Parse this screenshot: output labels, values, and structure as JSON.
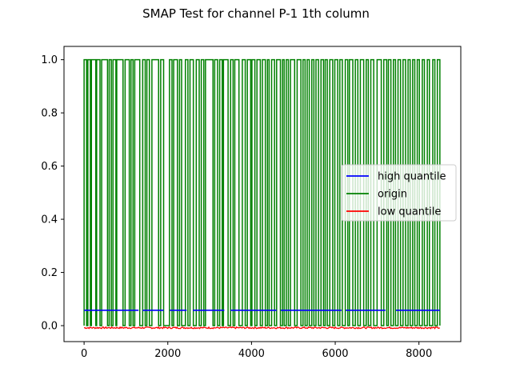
{
  "chart_data": {
    "type": "line",
    "title": "SMAP Test for channel P-1 1th column",
    "xlabel": "",
    "ylabel": "",
    "xlim": [
      -480,
      9000
    ],
    "ylim": [
      -0.06,
      1.05
    ],
    "grid": false,
    "legend_position": "center-right",
    "x_ticks": [
      0,
      2000,
      4000,
      6000,
      8000
    ],
    "x_tick_labels": [
      "0",
      "2000",
      "4000",
      "6000",
      "8000"
    ],
    "y_ticks": [
      0.0,
      0.2,
      0.4,
      0.6,
      0.8,
      1.0
    ],
    "y_tick_labels": [
      "0.0",
      "0.2",
      "0.4",
      "0.6",
      "0.8",
      "1.0"
    ],
    "series": [
      {
        "name": "high quantile",
        "color": "#0000ff",
        "style": "mostly constant with gaps",
        "constant_value": 0.058,
        "segments": [
          [
            0,
            1300
          ],
          [
            1400,
            1900
          ],
          [
            2050,
            2450
          ],
          [
            2600,
            3350
          ],
          [
            3500,
            4600
          ],
          [
            4700,
            6150
          ],
          [
            6250,
            7200
          ],
          [
            7450,
            8500
          ]
        ]
      },
      {
        "name": "origin",
        "color": "#008000",
        "style": "binary square wave 0/1",
        "low": 0.0,
        "high": 1.0,
        "x_end": 8500,
        "high_intervals": [
          [
            0,
            60
          ],
          [
            90,
            150
          ],
          [
            175,
            280
          ],
          [
            300,
            380
          ],
          [
            420,
            560
          ],
          [
            600,
            650
          ],
          [
            690,
            760
          ],
          [
            780,
            930
          ],
          [
            980,
            1080
          ],
          [
            1120,
            1170
          ],
          [
            1210,
            1330
          ],
          [
            1400,
            1460
          ],
          [
            1500,
            1560
          ],
          [
            1620,
            1780
          ],
          [
            1830,
            1900
          ],
          [
            2040,
            2100
          ],
          [
            2140,
            2230
          ],
          [
            2280,
            2330
          ],
          [
            2420,
            2480
          ],
          [
            2530,
            2610
          ],
          [
            2680,
            2750
          ],
          [
            2800,
            2860
          ],
          [
            2900,
            3080
          ],
          [
            3120,
            3190
          ],
          [
            3240,
            3300
          ],
          [
            3330,
            3440
          ],
          [
            3500,
            3560
          ],
          [
            3600,
            3700
          ],
          [
            3780,
            3850
          ],
          [
            3900,
            3980
          ],
          [
            4010,
            4080
          ],
          [
            4130,
            4210
          ],
          [
            4260,
            4330
          ],
          [
            4380,
            4420
          ],
          [
            4480,
            4550
          ],
          [
            4600,
            4690
          ],
          [
            4740,
            4780
          ],
          [
            4830,
            4880
          ],
          [
            4930,
            5030
          ],
          [
            5090,
            5180
          ],
          [
            5230,
            5280
          ],
          [
            5330,
            5380
          ],
          [
            5440,
            5490
          ],
          [
            5540,
            5600
          ],
          [
            5660,
            5720
          ],
          [
            5760,
            5810
          ],
          [
            5870,
            5940
          ],
          [
            5990,
            6060
          ],
          [
            6110,
            6170
          ],
          [
            6240,
            6300
          ],
          [
            6340,
            6420
          ],
          [
            6480,
            6540
          ],
          [
            6600,
            6680
          ],
          [
            6740,
            6790
          ],
          [
            6850,
            6920
          ],
          [
            7000,
            7100
          ],
          [
            7160,
            7230
          ],
          [
            7270,
            7330
          ],
          [
            7390,
            7440
          ],
          [
            7500,
            7560
          ],
          [
            7620,
            7680
          ],
          [
            7740,
            7790
          ],
          [
            7850,
            7900
          ],
          [
            7960,
            8010
          ],
          [
            8080,
            8130
          ],
          [
            8200,
            8250
          ],
          [
            8330,
            8380
          ],
          [
            8440,
            8500
          ]
        ]
      },
      {
        "name": "low quantile",
        "color": "#ff0000",
        "style": "noisy near constant",
        "constant_value": -0.008,
        "x_range": [
          0,
          8500
        ]
      }
    ]
  }
}
